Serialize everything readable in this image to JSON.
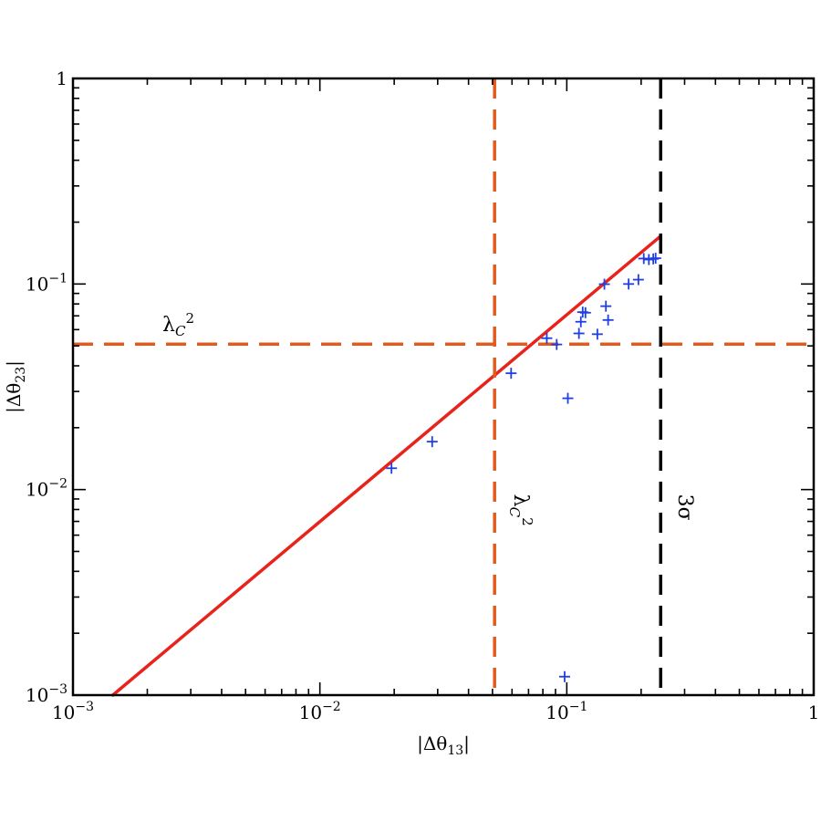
{
  "chart_data": {
    "type": "scatter",
    "xscale": "log",
    "yscale": "log",
    "xlim": [
      0.001,
      1
    ],
    "ylim": [
      0.001,
      1
    ],
    "xlabel": "|Δθ13|",
    "ylabel": "|Δθ23|",
    "xticks": [
      {
        "value": 0.001,
        "base": "10",
        "exp": "−3"
      },
      {
        "value": 0.01,
        "base": "10",
        "exp": "−2"
      },
      {
        "value": 0.1,
        "base": "10",
        "exp": "−1"
      },
      {
        "value": 1,
        "base": "1",
        "exp": ""
      }
    ],
    "yticks": [
      {
        "value": 0.001,
        "base": "10",
        "exp": "−3"
      },
      {
        "value": 0.01,
        "base": "10",
        "exp": "−2"
      },
      {
        "value": 0.1,
        "base": "10",
        "exp": "−1"
      },
      {
        "value": 1,
        "base": "1",
        "exp": ""
      }
    ],
    "grid": false,
    "series": [
      {
        "marker": "+",
        "color": "#1f3fe0",
        "points": [
          [
            0.0195,
            0.0127
          ],
          [
            0.0285,
            0.0171
          ],
          [
            0.0595,
            0.0368
          ],
          [
            0.083,
            0.0545
          ],
          [
            0.091,
            0.0508
          ],
          [
            0.098,
            0.00123
          ],
          [
            0.101,
            0.0278
          ],
          [
            0.112,
            0.0575
          ],
          [
            0.114,
            0.0655
          ],
          [
            0.116,
            0.073
          ],
          [
            0.119,
            0.0725
          ],
          [
            0.133,
            0.057
          ],
          [
            0.142,
            0.0998
          ],
          [
            0.144,
            0.078
          ],
          [
            0.147,
            0.0668
          ],
          [
            0.178,
            0.1
          ],
          [
            0.195,
            0.105
          ],
          [
            0.205,
            0.133
          ],
          [
            0.215,
            0.1315
          ],
          [
            0.224,
            0.1325
          ],
          [
            0.229,
            0.1335
          ]
        ]
      }
    ],
    "lines": [
      {
        "kind": "fit",
        "color": "#e8231b",
        "style": "solid",
        "from": [
          0.00145,
          0.001
        ],
        "to": [
          0.24,
          0.171
        ]
      },
      {
        "kind": "vertical",
        "color": "#e25a1e",
        "style": "dashed",
        "x": 0.051,
        "label": "λ",
        "label_sub": "C",
        "label_sup": "2"
      },
      {
        "kind": "horizontal",
        "color": "#e25a1e",
        "style": "dashed",
        "y": 0.051,
        "label": "λ",
        "label_sub": "C",
        "label_sup": "2"
      },
      {
        "kind": "vertical",
        "color": "#000000",
        "style": "dashed",
        "x": 0.24,
        "label": "3σ"
      }
    ]
  }
}
